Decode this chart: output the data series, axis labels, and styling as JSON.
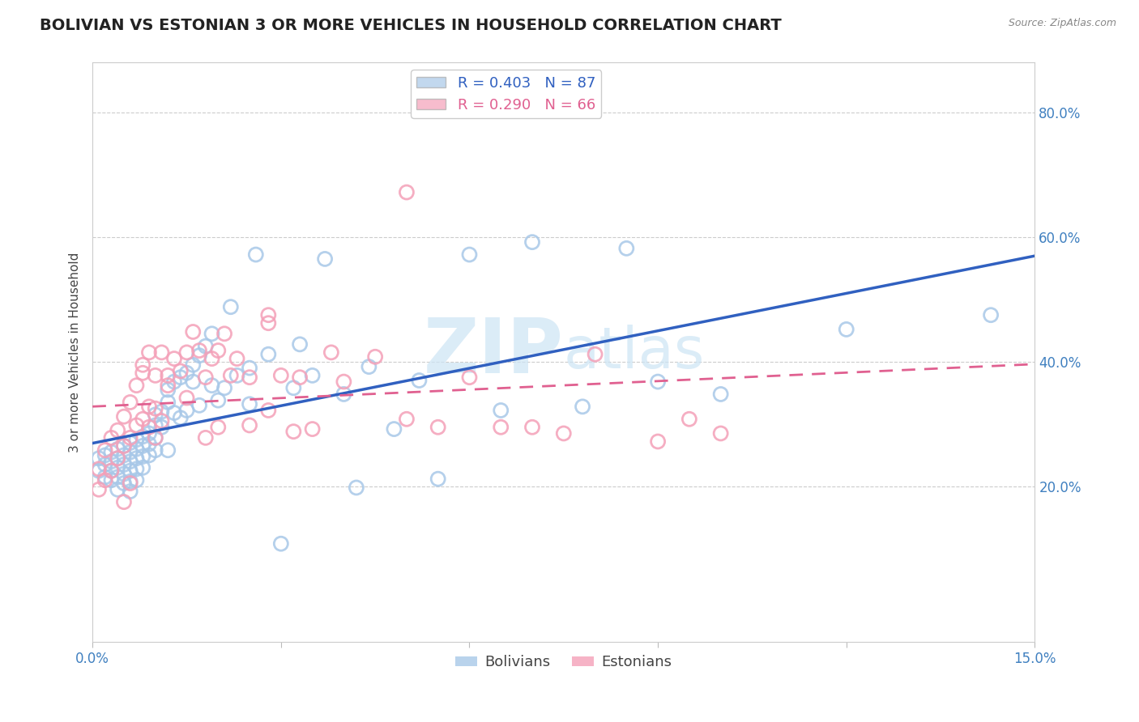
{
  "title": "BOLIVIAN VS ESTONIAN 3 OR MORE VEHICLES IN HOUSEHOLD CORRELATION CHART",
  "source": "Source: ZipAtlas.com",
  "ylabel": "3 or more Vehicles in Household",
  "xlim": [
    0.0,
    0.15
  ],
  "ylim": [
    -0.05,
    0.88
  ],
  "bolivians_R": 0.403,
  "bolivians_N": 87,
  "estonians_R": 0.29,
  "estonians_N": 66,
  "blue_scatter_color": "#a8c8e8",
  "pink_scatter_color": "#f4a0b8",
  "blue_line_color": "#3060c0",
  "pink_line_color": "#e06090",
  "watermark_color": "#cce4f4",
  "grid_color": "#cccccc",
  "right_tick_color": "#4080c0",
  "title_fontsize": 14,
  "axis_label_fontsize": 11,
  "tick_fontsize": 12,
  "legend_fontsize": 13,
  "bolivians_x": [
    0.001,
    0.001,
    0.002,
    0.002,
    0.002,
    0.003,
    0.003,
    0.003,
    0.003,
    0.004,
    0.004,
    0.004,
    0.004,
    0.004,
    0.005,
    0.005,
    0.005,
    0.005,
    0.005,
    0.006,
    0.006,
    0.006,
    0.006,
    0.006,
    0.006,
    0.007,
    0.007,
    0.007,
    0.007,
    0.007,
    0.008,
    0.008,
    0.008,
    0.008,
    0.009,
    0.009,
    0.009,
    0.01,
    0.01,
    0.01,
    0.01,
    0.011,
    0.011,
    0.012,
    0.012,
    0.012,
    0.013,
    0.013,
    0.014,
    0.014,
    0.015,
    0.015,
    0.016,
    0.016,
    0.017,
    0.017,
    0.018,
    0.019,
    0.019,
    0.02,
    0.021,
    0.022,
    0.023,
    0.025,
    0.025,
    0.026,
    0.028,
    0.03,
    0.032,
    0.033,
    0.035,
    0.037,
    0.04,
    0.042,
    0.044,
    0.048,
    0.052,
    0.055,
    0.06,
    0.065,
    0.07,
    0.078,
    0.085,
    0.09,
    0.1,
    0.12,
    0.143
  ],
  "bolivians_y": [
    0.245,
    0.225,
    0.25,
    0.235,
    0.215,
    0.255,
    0.24,
    0.225,
    0.21,
    0.26,
    0.245,
    0.23,
    0.215,
    0.195,
    0.265,
    0.25,
    0.235,
    0.22,
    0.205,
    0.27,
    0.255,
    0.24,
    0.225,
    0.208,
    0.192,
    0.275,
    0.26,
    0.245,
    0.228,
    0.21,
    0.28,
    0.265,
    0.248,
    0.23,
    0.285,
    0.268,
    0.25,
    0.315,
    0.298,
    0.278,
    0.258,
    0.32,
    0.295,
    0.355,
    0.335,
    0.258,
    0.368,
    0.318,
    0.375,
    0.31,
    0.382,
    0.322,
    0.395,
    0.368,
    0.41,
    0.33,
    0.425,
    0.445,
    0.362,
    0.338,
    0.358,
    0.488,
    0.378,
    0.39,
    0.332,
    0.572,
    0.412,
    0.108,
    0.358,
    0.428,
    0.378,
    0.565,
    0.348,
    0.198,
    0.392,
    0.292,
    0.37,
    0.212,
    0.572,
    0.322,
    0.592,
    0.328,
    0.582,
    0.368,
    0.348,
    0.452,
    0.475
  ],
  "estonians_x": [
    0.001,
    0.001,
    0.002,
    0.002,
    0.003,
    0.003,
    0.004,
    0.004,
    0.005,
    0.005,
    0.005,
    0.006,
    0.006,
    0.006,
    0.007,
    0.007,
    0.008,
    0.008,
    0.009,
    0.009,
    0.01,
    0.01,
    0.011,
    0.011,
    0.012,
    0.013,
    0.014,
    0.015,
    0.016,
    0.017,
    0.018,
    0.019,
    0.02,
    0.021,
    0.022,
    0.023,
    0.025,
    0.028,
    0.028,
    0.03,
    0.033,
    0.038,
    0.04,
    0.045,
    0.05,
    0.055,
    0.06,
    0.065,
    0.07,
    0.075,
    0.08,
    0.09,
    0.095,
    0.1,
    0.05,
    0.028,
    0.032,
    0.035,
    0.012,
    0.018,
    0.008,
    0.009,
    0.01,
    0.015,
    0.02,
    0.025
  ],
  "estonians_y": [
    0.228,
    0.195,
    0.258,
    0.21,
    0.278,
    0.225,
    0.29,
    0.245,
    0.312,
    0.265,
    0.175,
    0.335,
    0.278,
    0.205,
    0.362,
    0.298,
    0.395,
    0.308,
    0.415,
    0.295,
    0.378,
    0.278,
    0.415,
    0.305,
    0.378,
    0.405,
    0.385,
    0.415,
    0.448,
    0.418,
    0.375,
    0.405,
    0.418,
    0.445,
    0.378,
    0.405,
    0.375,
    0.475,
    0.322,
    0.378,
    0.375,
    0.415,
    0.368,
    0.408,
    0.308,
    0.295,
    0.375,
    0.295,
    0.295,
    0.285,
    0.412,
    0.272,
    0.308,
    0.285,
    0.672,
    0.462,
    0.288,
    0.292,
    0.362,
    0.278,
    0.382,
    0.328,
    0.325,
    0.342,
    0.295,
    0.298
  ]
}
